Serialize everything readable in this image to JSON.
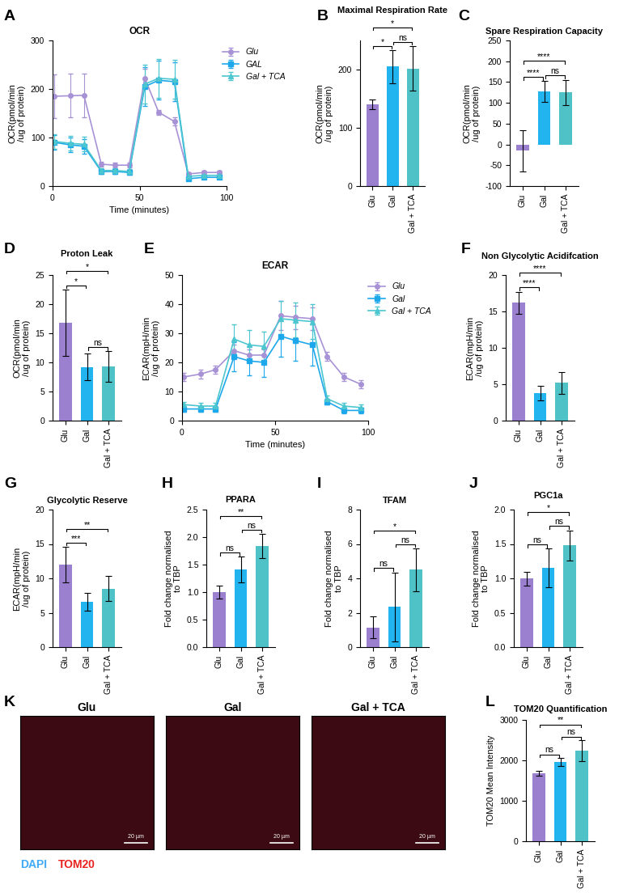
{
  "chart_data": [
    {
      "panel": "A",
      "type": "line",
      "title": "OCR",
      "x_label": "Time (minutes)",
      "y_label": "OCR(pmol/min\n/ug of protein)",
      "x": [
        1,
        10,
        18,
        28,
        36,
        44,
        53,
        61,
        70,
        78,
        87,
        96
      ],
      "series": [
        {
          "name": "Glu",
          "color": "#a892d6",
          "marker": "circle",
          "values": [
            185,
            186,
            187,
            45,
            43,
            43,
            222,
            152,
            133,
            25,
            28,
            28
          ],
          "errors": [
            45,
            45,
            45,
            5,
            5,
            5,
            20,
            5,
            8,
            3,
            3,
            3
          ]
        },
        {
          "name": "GAL",
          "color": "#1ea8ec",
          "marker": "square",
          "values": [
            90,
            85,
            82,
            30,
            30,
            28,
            205,
            218,
            215,
            15,
            18,
            18
          ],
          "errors": [
            15,
            15,
            15,
            5,
            5,
            5,
            40,
            40,
            40,
            3,
            3,
            3
          ]
        },
        {
          "name": "Gal + TCA",
          "color": "#4cc6cf",
          "marker": "triangle",
          "values": [
            92,
            88,
            86,
            32,
            32,
            30,
            210,
            222,
            220,
            20,
            22,
            22
          ],
          "errors": [
            15,
            15,
            15,
            5,
            5,
            5,
            40,
            40,
            40,
            3,
            3,
            3
          ]
        }
      ],
      "xlim": [
        0,
        100
      ],
      "xticks": [
        0,
        50,
        100
      ],
      "ylim": [
        0,
        300
      ],
      "yticks": [
        0,
        100,
        200,
        300
      ],
      "legend": "upper right"
    },
    {
      "panel": "B",
      "type": "bar",
      "title": "Maximal Respiration Rate",
      "y_label": "OCR(pmol/min\n/ug of protein)",
      "categories": [
        "Glu",
        "Gal",
        "Gal + TCA"
      ],
      "values": [
        140,
        205,
        202
      ],
      "errors": [
        8,
        28,
        38
      ],
      "colors": [
        "#9b80d0",
        "#22b4ef",
        "#4fc2c8"
      ],
      "ylim": [
        0,
        250
      ],
      "yticks": [
        0,
        100,
        200
      ],
      "significance": [
        {
          "pair": [
            0,
            1
          ],
          "label": "*"
        },
        {
          "pair": [
            0,
            2
          ],
          "label": "*"
        },
        {
          "pair": [
            1,
            2
          ],
          "label": "ns"
        }
      ]
    },
    {
      "panel": "C",
      "type": "bar",
      "title": "Spare Respiration Capacity",
      "y_label": "OCR(pmol/min\n/ug of protein)",
      "categories": [
        "Glu",
        "Gal",
        "Gal + TCA"
      ],
      "values": [
        -15,
        127,
        125
      ],
      "errors": [
        50,
        25,
        30
      ],
      "colors": [
        "#9b80d0",
        "#22b4ef",
        "#4fc2c8"
      ],
      "ylim": [
        -100,
        250
      ],
      "yticks": [
        -100,
        -50,
        0,
        50,
        100,
        150,
        200,
        250
      ],
      "significance": [
        {
          "pair": [
            0,
            1
          ],
          "label": "****"
        },
        {
          "pair": [
            0,
            2
          ],
          "label": "****"
        },
        {
          "pair": [
            1,
            2
          ],
          "label": "ns"
        }
      ]
    },
    {
      "panel": "D",
      "type": "bar",
      "title": "Proton Leak",
      "y_label": "OCR(pmol/min\n/ug of protein)",
      "categories": [
        "Glu",
        "Gal",
        "Gal + TCA"
      ],
      "values": [
        16.8,
        9.2,
        9.3
      ],
      "errors": [
        5.7,
        2.3,
        2.6
      ],
      "colors": [
        "#9b80d0",
        "#22b4ef",
        "#4fc2c8"
      ],
      "ylim": [
        0,
        25
      ],
      "yticks": [
        0,
        5,
        10,
        15,
        20,
        25
      ],
      "significance": [
        {
          "pair": [
            0,
            1
          ],
          "label": "*"
        },
        {
          "pair": [
            0,
            2
          ],
          "label": "*"
        },
        {
          "pair": [
            1,
            2
          ],
          "label": "ns"
        }
      ]
    },
    {
      "panel": "E",
      "type": "line",
      "title": "ECAR",
      "x_label": "Time (minutes)",
      "y_label": "ECAR(mpH/min\n/ug of protein)",
      "x": [
        1,
        10,
        18,
        28,
        36,
        44,
        53,
        61,
        70,
        78,
        87,
        96
      ],
      "series": [
        {
          "name": "Glu",
          "color": "#a892d6",
          "marker": "circle",
          "values": [
            15,
            16,
            17.5,
            24,
            22.5,
            22.5,
            36,
            35.5,
            35,
            22,
            15,
            12.5
          ],
          "errors": [
            1.5,
            1.5,
            1.5,
            2,
            2,
            2,
            5,
            4,
            4,
            1.5,
            1.5,
            1.5
          ]
        },
        {
          "name": "Gal",
          "color": "#1ea8ec",
          "marker": "square",
          "values": [
            4,
            4,
            4,
            22,
            20.5,
            20,
            29,
            27.5,
            26,
            6.5,
            3.5,
            3.5
          ],
          "errors": [
            1,
            1,
            1,
            5,
            5,
            5,
            7,
            7,
            7,
            1,
            1,
            1
          ]
        },
        {
          "name": "Gal + TCA",
          "color": "#4cc6cf",
          "marker": "triangle",
          "values": [
            5.5,
            5,
            5,
            28,
            26,
            25.5,
            35,
            34.5,
            34,
            7.5,
            5,
            4.5
          ],
          "errors": [
            1,
            1,
            1,
            5,
            5,
            5,
            6,
            6,
            6,
            1,
            1,
            1
          ]
        }
      ],
      "xlim": [
        0,
        100
      ],
      "xticks": [
        0,
        50,
        100
      ],
      "ylim": [
        0,
        50
      ],
      "yticks": [
        0,
        10,
        20,
        30,
        40,
        50
      ],
      "legend": "upper right"
    },
    {
      "panel": "F",
      "type": "bar",
      "title": "Non Glycolytic Acidifcation",
      "y_label": "ECAR(mpH/min\n/ug of protein)",
      "categories": [
        "Glu",
        "Gal",
        "Gal + TCA"
      ],
      "values": [
        16.2,
        3.8,
        5.2
      ],
      "errors": [
        1.5,
        1.0,
        1.5
      ],
      "colors": [
        "#9b80d0",
        "#22b4ef",
        "#4fc2c8"
      ],
      "ylim": [
        0,
        20
      ],
      "yticks": [
        0,
        5,
        10,
        15,
        20
      ],
      "significance": [
        {
          "pair": [
            0,
            1
          ],
          "label": "****"
        },
        {
          "pair": [
            0,
            2
          ],
          "label": "****"
        }
      ]
    },
    {
      "panel": "G",
      "type": "bar",
      "title": "Glycolytic Reserve",
      "y_label": "ECAR(mpH/min\n/ug of protein)",
      "categories": [
        "Glu",
        "Gal",
        "Gal + TCA"
      ],
      "values": [
        12.0,
        6.6,
        8.5
      ],
      "errors": [
        2.6,
        1.3,
        1.8
      ],
      "colors": [
        "#9b80d0",
        "#22b4ef",
        "#4fc2c8"
      ],
      "ylim": [
        0,
        20
      ],
      "yticks": [
        0,
        5,
        10,
        15,
        20
      ],
      "significance": [
        {
          "pair": [
            0,
            1
          ],
          "label": "***"
        },
        {
          "pair": [
            0,
            2
          ],
          "label": "**"
        }
      ]
    },
    {
      "panel": "H",
      "type": "bar",
      "title": "PPARA",
      "y_label": "Fold change normalised\nto TBP",
      "categories": [
        "Glu",
        "Gal",
        "Gal + TCA"
      ],
      "values": [
        1.0,
        1.41,
        1.84
      ],
      "errors": [
        0.12,
        0.23,
        0.22
      ],
      "colors": [
        "#9b80d0",
        "#22b4ef",
        "#4fc2c8"
      ],
      "ylim": [
        0.0,
        2.5
      ],
      "yticks": [
        0.0,
        0.5,
        1.0,
        1.5,
        2.0,
        2.5
      ],
      "significance": [
        {
          "pair": [
            0,
            1
          ],
          "label": "ns"
        },
        {
          "pair": [
            0,
            2
          ],
          "label": "**"
        },
        {
          "pair": [
            1,
            2
          ],
          "label": "ns"
        }
      ]
    },
    {
      "panel": "I",
      "type": "bar",
      "title": "TFAM",
      "y_label": "Fold change normalised\nto TBP",
      "categories": [
        "Glu",
        "Gal",
        "Gal + TCA"
      ],
      "values": [
        1.15,
        2.35,
        4.5
      ],
      "errors": [
        0.65,
        2.0,
        1.25
      ],
      "colors": [
        "#9b80d0",
        "#22b4ef",
        "#4fc2c8"
      ],
      "ylim": [
        0,
        8
      ],
      "yticks": [
        0,
        2,
        4,
        6,
        8
      ],
      "significance": [
        {
          "pair": [
            0,
            1
          ],
          "label": "ns"
        },
        {
          "pair": [
            0,
            2
          ],
          "label": "*"
        },
        {
          "pair": [
            1,
            2
          ],
          "label": "ns"
        }
      ]
    },
    {
      "panel": "J",
      "type": "bar",
      "title": "PGC1a",
      "y_label": "Fold change normalised\nto TBP",
      "categories": [
        "Glu",
        "Gal",
        "Gal + TCA"
      ],
      "values": [
        1.0,
        1.15,
        1.48
      ],
      "errors": [
        0.1,
        0.28,
        0.22
      ],
      "colors": [
        "#9b80d0",
        "#22b4ef",
        "#4fc2c8"
      ],
      "ylim": [
        0.0,
        2.0
      ],
      "yticks": [
        0.0,
        0.5,
        1.0,
        1.5,
        2.0
      ],
      "significance": [
        {
          "pair": [
            0,
            1
          ],
          "label": "ns"
        },
        {
          "pair": [
            0,
            2
          ],
          "label": "*"
        },
        {
          "pair": [
            1,
            2
          ],
          "label": "ns"
        }
      ]
    },
    {
      "panel": "K",
      "type": "image",
      "images": [
        {
          "title": "Glu"
        },
        {
          "title": "Gal"
        },
        {
          "title": "Gal + TCA"
        }
      ],
      "scale_bar": "20 µm",
      "channels": [
        {
          "name": "DAPI",
          "color": "#3fa9f5"
        },
        {
          "name": "TOM20",
          "color": "#e8231f"
        }
      ]
    },
    {
      "panel": "L",
      "type": "bar",
      "title": "TOM20 Quantification",
      "y_label": "TOM20 Mean Intensity",
      "categories": [
        "Glu",
        "Gal",
        "Gal + TCA"
      ],
      "values": [
        1690,
        1960,
        2240
      ],
      "errors": [
        60,
        100,
        260
      ],
      "colors": [
        "#9b80d0",
        "#22b4ef",
        "#4fc2c8"
      ],
      "ylim": [
        0,
        3000
      ],
      "yticks": [
        0,
        1000,
        2000,
        3000
      ],
      "significance": [
        {
          "pair": [
            0,
            1
          ],
          "label": "ns"
        },
        {
          "pair": [
            0,
            2
          ],
          "label": "**"
        },
        {
          "pair": [
            1,
            2
          ],
          "label": "ns"
        }
      ]
    }
  ]
}
